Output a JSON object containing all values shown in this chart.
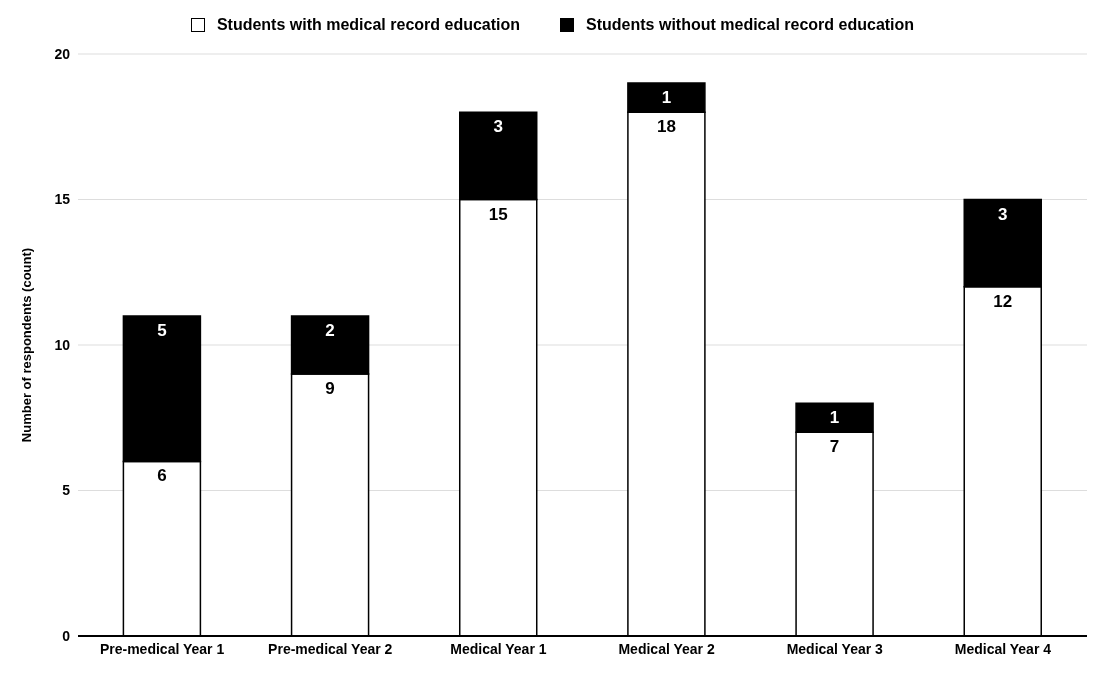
{
  "chart_data": {
    "type": "bar",
    "stacked": true,
    "ylabel": "Number of respondents (count)",
    "categories": [
      "Pre-medical Year 1",
      "Pre-medical Year 2",
      "Medical Year 1",
      "Medical Year 2",
      "Medical Year 3",
      "Medical Year 4"
    ],
    "series": [
      {
        "name": "Students with medical record education",
        "color": "#ffffff",
        "values": [
          6,
          9,
          15,
          18,
          7,
          12
        ]
      },
      {
        "name": "Students without medical record education",
        "color": "#000000",
        "values": [
          5,
          2,
          3,
          1,
          1,
          3
        ]
      }
    ],
    "ylim": [
      0,
      20
    ],
    "yticks": [
      0,
      5,
      10,
      15,
      20
    ],
    "grid": "y",
    "legend": "top",
    "data_labels": true
  }
}
